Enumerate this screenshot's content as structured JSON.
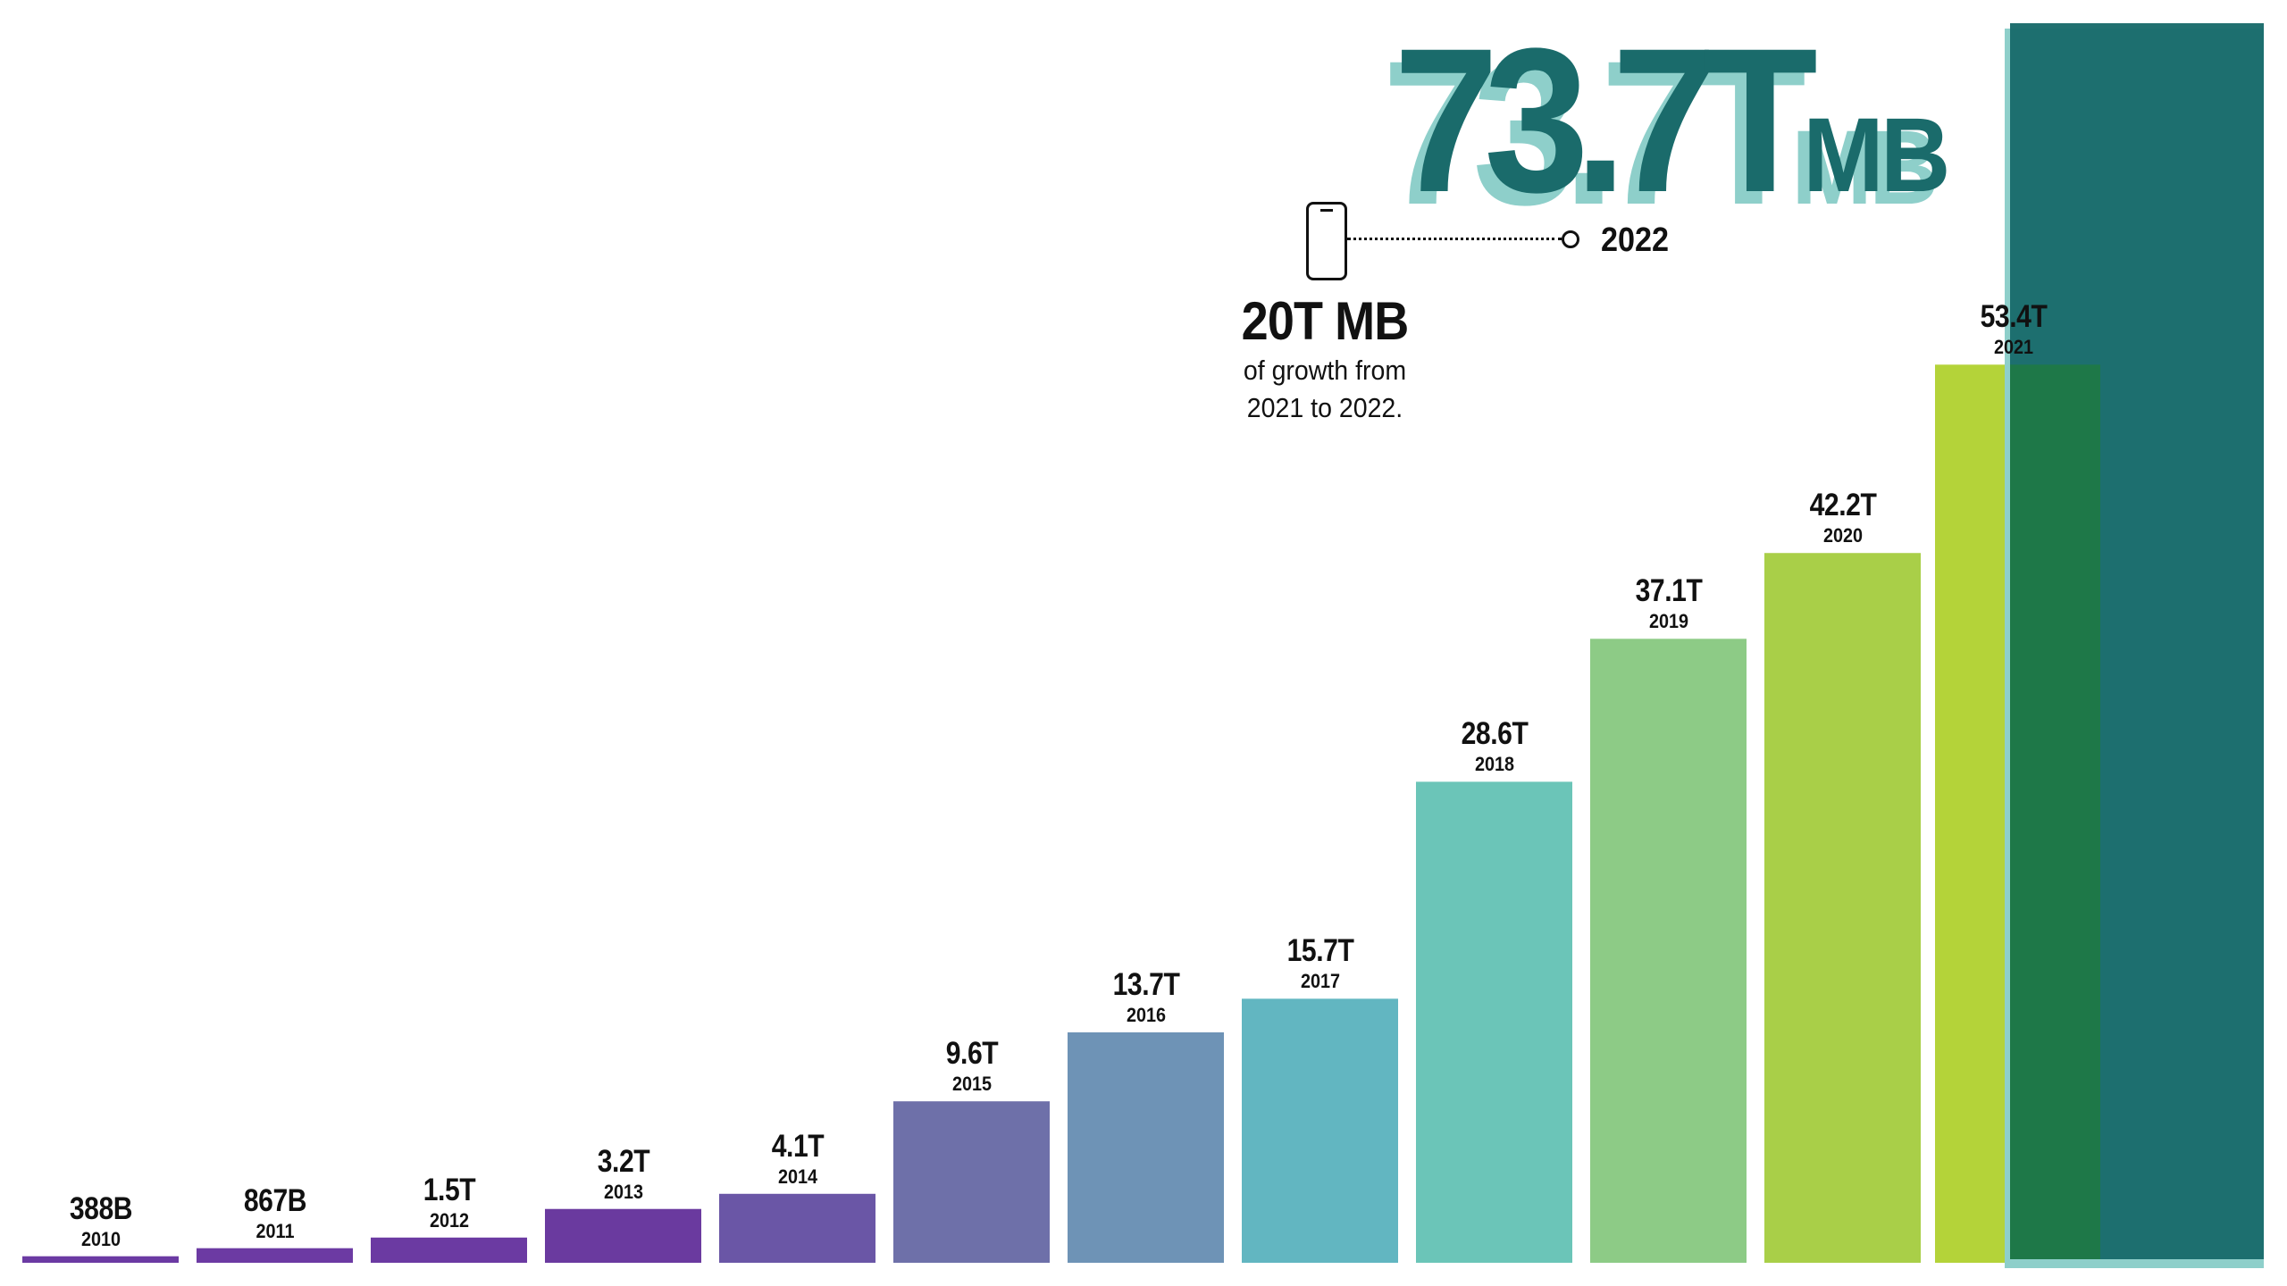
{
  "chart_data": {
    "type": "bar",
    "categories": [
      "2010",
      "2011",
      "2012",
      "2013",
      "2014",
      "2015",
      "2016",
      "2017",
      "2018",
      "2019",
      "2020",
      "2021",
      "2022"
    ],
    "values": [
      0.388,
      0.867,
      1.5,
      3.2,
      4.1,
      9.6,
      13.7,
      15.7,
      28.6,
      37.1,
      42.2,
      53.4,
      73.7
    ],
    "value_labels": [
      "388B",
      "867B",
      "1.5T",
      "3.2T",
      "4.1T",
      "9.6T",
      "13.7T",
      "15.7T",
      "28.6T",
      "37.1T",
      "42.2T",
      "53.4T",
      "73.7T"
    ],
    "unit": "MB",
    "colors": [
      "#6b3aa3",
      "#6c3aa3",
      "#6b3aa2",
      "#6a3a9f",
      "#6a56a6",
      "#6e70a9",
      "#6e93b6",
      "#62b6c1",
      "#6bc5b8",
      "#8dcb86",
      "#a9cf48",
      "#b4d339",
      "#1a6b6b"
    ],
    "highlight_shadow_color": "#8ecfca",
    "overlap_color": "#1f7a42",
    "ylim": [
      0,
      73.7
    ],
    "grid": false,
    "xlabel": "",
    "ylabel": ""
  },
  "headline": {
    "value": "73.7T",
    "unit": "MB",
    "year": "2022"
  },
  "callout": {
    "icon": "smartphone-icon",
    "title": "20T MB",
    "line1": "of growth from",
    "line2": "2021 to 2022."
  }
}
